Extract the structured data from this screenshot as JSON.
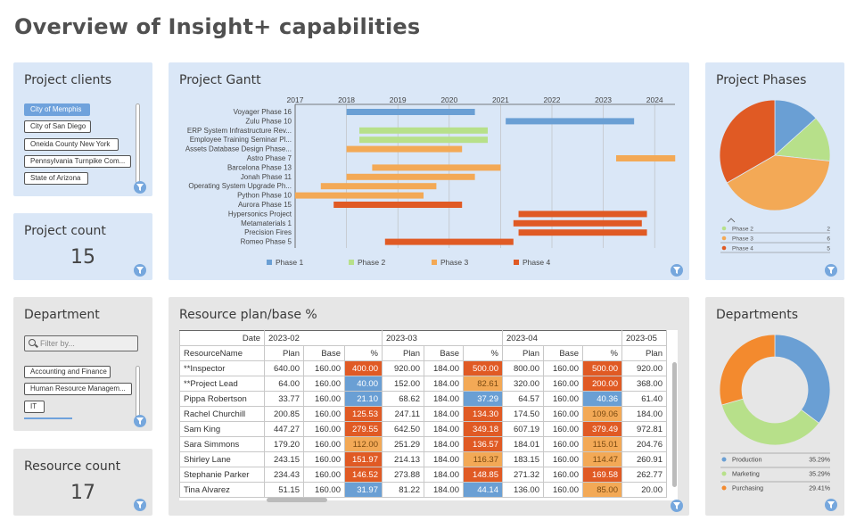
{
  "page_title": "Overview of Insight+ capabilities",
  "colors": {
    "phase1": "#6a9fd4",
    "phase2": "#b7e08a",
    "phase3": "#f3a956",
    "phase4": "#e05a24",
    "panel_blue": "#dae7f7",
    "panel_gray": "#e6e6e6",
    "filter_button": "#76a7dd"
  },
  "clients": {
    "title": "Project clients",
    "items": [
      "City of Memphis",
      "City of San Diego",
      "Oneida County New York",
      "Pennsylvania Turnpike Com...",
      "State of Arizona"
    ],
    "selected": 0
  },
  "project_count": {
    "title": "Project count",
    "value": "15"
  },
  "department": {
    "title": "Department",
    "search_placeholder": "Filter by...",
    "items": [
      "Accounting and Finance",
      "Human Resource Managem...",
      "IT"
    ]
  },
  "resource_count": {
    "title": "Resource count",
    "value": "17"
  },
  "gantt": {
    "title": "Project Gantt",
    "years": [
      "2017",
      "2018",
      "2019",
      "2020",
      "2021",
      "2022",
      "2023",
      "2024"
    ],
    "legend": [
      "Phase 1",
      "Phase 2",
      "Phase 3",
      "Phase 4"
    ],
    "tasks": [
      {
        "label": "Voyager Phase 16",
        "phase": 1,
        "start": 2018.0,
        "end": 2020.5
      },
      {
        "label": "Zulu Phase 10",
        "phase": 1,
        "start": 2021.1,
        "end": 2023.6
      },
      {
        "label": "ERP System Infrastructure Rev...",
        "phase": 2,
        "start": 2018.25,
        "end": 2020.75
      },
      {
        "label": "Employee Training Seminar Pl...",
        "phase": 2,
        "start": 2018.25,
        "end": 2020.75
      },
      {
        "label": "Assets Database Design Phase...",
        "phase": 3,
        "start": 2018.0,
        "end": 2020.25
      },
      {
        "label": "Astro Phase 7",
        "phase": 3,
        "start": 2023.25,
        "end": 2024.4
      },
      {
        "label": "Barcelona Phase 13",
        "phase": 3,
        "start": 2018.5,
        "end": 2021.0
      },
      {
        "label": "Jonah Phase 11",
        "phase": 3,
        "start": 2018.0,
        "end": 2020.5
      },
      {
        "label": "Operating System Upgrade Ph...",
        "phase": 3,
        "start": 2017.5,
        "end": 2019.75
      },
      {
        "label": "Python Phase 10",
        "phase": 3,
        "start": 2017.0,
        "end": 2019.5
      },
      {
        "label": "Aurora Phase 15",
        "phase": 4,
        "start": 2017.75,
        "end": 2020.25
      },
      {
        "label": "Hypersonics Project",
        "phase": 4,
        "start": 2021.35,
        "end": 2023.85
      },
      {
        "label": "Metamaterials 1",
        "phase": 4,
        "start": 2021.25,
        "end": 2023.75
      },
      {
        "label": "Precision Fires",
        "phase": 4,
        "start": 2021.35,
        "end": 2023.85
      },
      {
        "label": "Romeo Phase 5",
        "phase": 4,
        "start": 2018.75,
        "end": 2021.25
      }
    ]
  },
  "phases": {
    "title": "Project Phases",
    "slices": [
      {
        "name": "Phase 1",
        "value": 2,
        "color": "#6a9fd4"
      },
      {
        "name": "Phase 2",
        "value": 2,
        "color": "#b7e08a"
      },
      {
        "name": "Phase 3",
        "value": 6,
        "color": "#f3a956"
      },
      {
        "name": "Phase 4",
        "value": 5,
        "color": "#e05a24"
      }
    ],
    "legend": [
      {
        "name": "Phase 2",
        "value": "2"
      },
      {
        "name": "Phase 3",
        "value": "6"
      },
      {
        "name": "Phase 4",
        "value": "5"
      }
    ]
  },
  "resource_table": {
    "title": "Resource plan/base %",
    "date_label": "Date",
    "row_header": "ResourceName",
    "months": [
      "2023-02",
      "2023-03",
      "2023-04",
      "2023-05"
    ],
    "subcols": [
      "Plan",
      "Base",
      "%"
    ],
    "rows": [
      {
        "name": "**Inspector",
        "cells": [
          [
            "640.00",
            "160.00",
            "400.00",
            "r"
          ],
          [
            "920.00",
            "184.00",
            "500.00",
            "r"
          ],
          [
            "800.00",
            "160.00",
            "500.00",
            "r"
          ],
          [
            "920.00"
          ]
        ]
      },
      {
        "name": "**Project Lead",
        "cells": [
          [
            "64.00",
            "160.00",
            "40.00",
            "b"
          ],
          [
            "152.00",
            "184.00",
            "82.61",
            "o"
          ],
          [
            "320.00",
            "160.00",
            "200.00",
            "r"
          ],
          [
            "368.00"
          ]
        ]
      },
      {
        "name": "Pippa Robertson",
        "cells": [
          [
            "33.77",
            "160.00",
            "21.10",
            "b"
          ],
          [
            "68.62",
            "184.00",
            "37.29",
            "b"
          ],
          [
            "64.57",
            "160.00",
            "40.36",
            "b"
          ],
          [
            "61.40"
          ]
        ]
      },
      {
        "name": "Rachel Churchill",
        "cells": [
          [
            "200.85",
            "160.00",
            "125.53",
            "r"
          ],
          [
            "247.11",
            "184.00",
            "134.30",
            "r"
          ],
          [
            "174.50",
            "160.00",
            "109.06",
            "o"
          ],
          [
            "184.00"
          ]
        ]
      },
      {
        "name": "Sam King",
        "cells": [
          [
            "447.27",
            "160.00",
            "279.55",
            "r"
          ],
          [
            "642.50",
            "184.00",
            "349.18",
            "r"
          ],
          [
            "607.19",
            "160.00",
            "379.49",
            "r"
          ],
          [
            "972.81"
          ]
        ]
      },
      {
        "name": "Sara Simmons",
        "cells": [
          [
            "179.20",
            "160.00",
            "112.00",
            "o"
          ],
          [
            "251.29",
            "184.00",
            "136.57",
            "r"
          ],
          [
            "184.01",
            "160.00",
            "115.01",
            "o"
          ],
          [
            "204.76"
          ]
        ]
      },
      {
        "name": "Shirley Lane",
        "cells": [
          [
            "243.15",
            "160.00",
            "151.97",
            "r"
          ],
          [
            "214.13",
            "184.00",
            "116.37",
            "o"
          ],
          [
            "183.15",
            "160.00",
            "114.47",
            "o"
          ],
          [
            "260.91"
          ]
        ]
      },
      {
        "name": "Stephanie Parker",
        "cells": [
          [
            "234.43",
            "160.00",
            "146.52",
            "r"
          ],
          [
            "273.88",
            "184.00",
            "148.85",
            "r"
          ],
          [
            "271.32",
            "160.00",
            "169.58",
            "r"
          ],
          [
            "262.77"
          ]
        ]
      },
      {
        "name": "Tina Alvarez",
        "cells": [
          [
            "51.15",
            "160.00",
            "31.97",
            "b"
          ],
          [
            "81.22",
            "184.00",
            "44.14",
            "b"
          ],
          [
            "136.00",
            "160.00",
            "85.00",
            "o"
          ],
          [
            "20.00"
          ]
        ]
      }
    ]
  },
  "departments": {
    "title": "Departments",
    "slices": [
      {
        "name": "Production",
        "value": 35.29,
        "pct": "35.29%",
        "color": "#6a9fd4"
      },
      {
        "name": "Marketing",
        "value": 35.29,
        "pct": "35.29%",
        "color": "#b7e08a"
      },
      {
        "name": "Purchasing",
        "value": 29.41,
        "pct": "29.41%",
        "color": "#f38a2e"
      }
    ]
  }
}
